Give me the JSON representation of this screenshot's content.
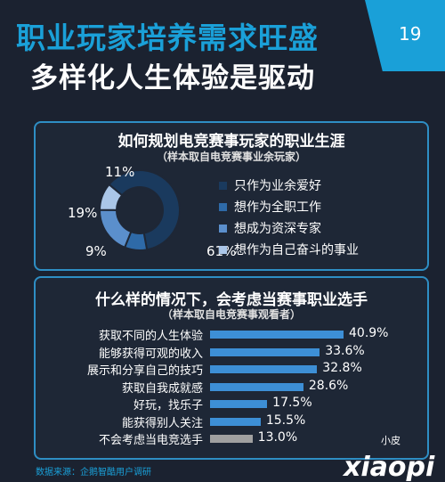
{
  "header": {
    "title_line1": "职业玩家培养需求旺盛",
    "title_line2": "多样化人生体验是驱动",
    "page_number": "19"
  },
  "chart_data": [
    {
      "type": "pie",
      "title": "如何规划电竞赛事玩家的职业生涯",
      "subtitle": "（样本取自电竞赛事业余玩家）",
      "categories": [
        "只作为业余爱好",
        "想作为全职工作",
        "想成为资深专家",
        "想作为自己奋斗的事业"
      ],
      "values": [
        61,
        9,
        19,
        11
      ],
      "value_labels": [
        "61%",
        "9%",
        "19%",
        "11%"
      ],
      "colors": [
        "#1a3a5e",
        "#2e6aa8",
        "#5b8fcc",
        "#aac6e8"
      ],
      "legend_position": "right"
    },
    {
      "type": "bar",
      "title": "什么样的情况下，会考虑当赛事职业选手",
      "subtitle": "（样本取自电竞赛事观看者）",
      "categories": [
        "获取不同的人生体验",
        "能够获得可观的收入",
        "展示和分享自己的技巧",
        "获取自我成就感",
        "好玩，找乐子",
        "能获得别人关注",
        "不会考虑当电竞选手"
      ],
      "values": [
        40.9,
        33.6,
        32.8,
        28.6,
        17.5,
        15.5,
        13.0
      ],
      "value_labels": [
        "40.9%",
        "33.6%",
        "32.8%",
        "28.6%",
        "17.5%",
        "15.5%",
        "13.0%"
      ],
      "colors": [
        "#3d8fd6",
        "#3d8fd6",
        "#3d8fd6",
        "#3d8fd6",
        "#3d8fd6",
        "#3d8fd6",
        "#a0a0a0"
      ]
    }
  ],
  "footer": {
    "source": "数据来源：企鹅智酷用户调研",
    "logo_small": "小皮",
    "logo_text": "xiaopi"
  }
}
